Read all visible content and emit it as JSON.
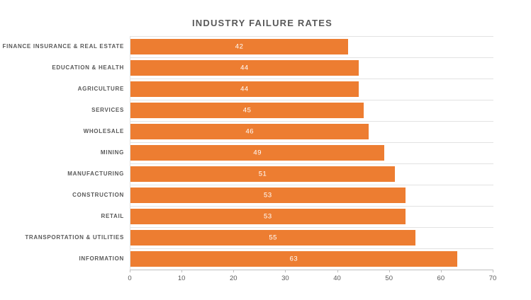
{
  "title": "INDUSTRY FAILURE RATES",
  "colors": {
    "bar": "#ED7D31",
    "title_text": "#595959",
    "axis_text": "#595959",
    "gridline": "#E2E2E2",
    "axis_line": "#BFBFBF",
    "value_label": "#FFFFFF",
    "background": "#FFFFFF"
  },
  "chart_data": {
    "type": "bar",
    "orientation": "horizontal",
    "title": "INDUSTRY FAILURE RATES",
    "categories": [
      "FINANCE INSURANCE & REAL ESTATE",
      "EDUCATION & HEALTH",
      "AGRICULTURE",
      "SERVICES",
      "WHOLESALE",
      "MINING",
      "MANUFACTURING",
      "CONSTRUCTION",
      "RETAIL",
      "TRANSPORTATION & UTILITIES",
      "INFORMATION"
    ],
    "values": [
      42,
      44,
      44,
      45,
      46,
      49,
      51,
      53,
      53,
      55,
      63
    ],
    "xlabel": "",
    "ylabel": "",
    "xlim": [
      0,
      70
    ],
    "x_ticks": [
      0,
      10,
      20,
      30,
      40,
      50,
      60,
      70
    ],
    "grid": "horizontal category gridlines",
    "legend": "none",
    "data_labels": "inside center, white"
  }
}
